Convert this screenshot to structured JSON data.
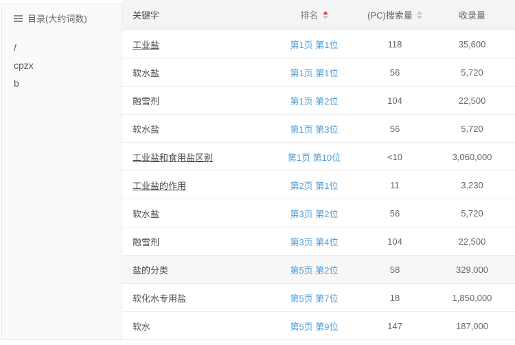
{
  "sidebar": {
    "title": "目录(大约词数)",
    "items": [
      "/",
      "cpzx",
      "b"
    ]
  },
  "table": {
    "columns": {
      "keyword": "关键字",
      "rank": "排名",
      "search": "(PC)搜索量",
      "index": "收录量"
    },
    "sort_state": {
      "rank": "ascending-active",
      "search": "inactive"
    },
    "rows": [
      {
        "keyword": "工业盐",
        "rank": "第1页 第1位",
        "search": "118",
        "index": "35,600",
        "underlined": true,
        "highlighted": false
      },
      {
        "keyword": "软水盐",
        "rank": "第1页 第1位",
        "search": "56",
        "index": "5,720",
        "underlined": false,
        "highlighted": false
      },
      {
        "keyword": "融雪剂",
        "rank": "第1页 第2位",
        "search": "104",
        "index": "22,500",
        "underlined": false,
        "highlighted": false
      },
      {
        "keyword": "软水盐",
        "rank": "第1页 第3位",
        "search": "56",
        "index": "5,720",
        "underlined": false,
        "highlighted": false
      },
      {
        "keyword": "工业盐和食用盐区别",
        "rank": "第1页 第10位",
        "search": "<10",
        "index": "3,060,000",
        "underlined": true,
        "highlighted": false
      },
      {
        "keyword": "工业盐的作用",
        "rank": "第2页 第1位",
        "search": "11",
        "index": "3,230",
        "underlined": true,
        "highlighted": false
      },
      {
        "keyword": "软水盐",
        "rank": "第3页 第2位",
        "search": "56",
        "index": "5,720",
        "underlined": false,
        "highlighted": false
      },
      {
        "keyword": "融雪剂",
        "rank": "第3页 第4位",
        "search": "104",
        "index": "22,500",
        "underlined": false,
        "highlighted": false
      },
      {
        "keyword": "盐的分类",
        "rank": "第5页 第2位",
        "search": "58",
        "index": "329,000",
        "underlined": false,
        "highlighted": true
      },
      {
        "keyword": "软化水专用盐",
        "rank": "第5页 第7位",
        "search": "18",
        "index": "1,850,000",
        "underlined": false,
        "highlighted": false
      },
      {
        "keyword": "软水",
        "rank": "第5页 第9位",
        "search": "147",
        "index": "187,000",
        "underlined": false,
        "highlighted": false
      }
    ]
  },
  "colors": {
    "link_blue": "#4f9dd9",
    "sort_active_red": "#e4393c",
    "sort_inactive_gray": "#c9c9c9",
    "header_bg": "#f4f4f4",
    "sidebar_bg": "#fafafa",
    "row_highlight": "#f7f7f7",
    "border": "#e8e8e8"
  }
}
